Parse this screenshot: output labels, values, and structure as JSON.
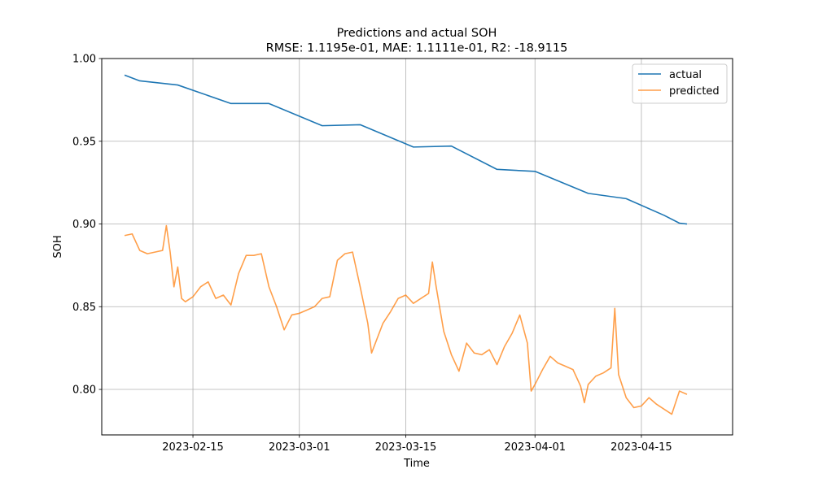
{
  "chart_data": {
    "type": "line",
    "title": "Predictions and actual SOH",
    "subtitle": "RMSE: 1.1195e-01, MAE: 1.1111e-01, R2: -18.9115",
    "xlabel": "Time",
    "ylabel": "SOH",
    "xlim": [
      "2023-02-03",
      "2023-04-27"
    ],
    "ylim": [
      0.7725,
      1.0
    ],
    "x_ticks": [
      "2023-02-15",
      "2023-03-01",
      "2023-03-15",
      "2023-04-01",
      "2023-04-15"
    ],
    "y_ticks": [
      "0.80",
      "0.85",
      "0.90",
      "0.95",
      "1.00"
    ],
    "y_tick_values": [
      0.8,
      0.85,
      0.9,
      0.95,
      1.0
    ],
    "grid": true,
    "legend_position": "upper-right",
    "series": [
      {
        "name": "actual",
        "color": "#1f77b4",
        "points": [
          [
            "2023-02-06",
            0.99
          ],
          [
            "2023-02-08",
            0.9865
          ],
          [
            "2023-02-13",
            0.984
          ],
          [
            "2023-02-20",
            0.9728
          ],
          [
            "2023-02-25",
            0.9728
          ],
          [
            "2023-03-04",
            0.9594
          ],
          [
            "2023-03-09",
            0.96
          ],
          [
            "2023-03-16",
            0.9465
          ],
          [
            "2023-03-21",
            0.9471
          ],
          [
            "2023-03-27",
            0.933
          ],
          [
            "2023-04-01",
            0.9318
          ],
          [
            "2023-04-08",
            0.9185
          ],
          [
            "2023-04-13",
            0.9153
          ],
          [
            "2023-04-18",
            0.9052
          ],
          [
            "2023-04-20",
            0.9005
          ],
          [
            "2023-04-21",
            0.9
          ]
        ]
      },
      {
        "name": "predicted",
        "color": "#ff7f0e",
        "points": [
          [
            "2023-02-06",
            0.893
          ],
          [
            "2023-02-07",
            0.894
          ],
          [
            "2023-02-08",
            0.884
          ],
          [
            "2023-02-09",
            0.882
          ],
          [
            "2023-02-10",
            0.883
          ],
          [
            "2023-02-11",
            0.884
          ],
          [
            "2023-02-11T12:00",
            0.899
          ],
          [
            "2023-02-12",
            0.883
          ],
          [
            "2023-02-12T12:00",
            0.862
          ],
          [
            "2023-02-13",
            0.874
          ],
          [
            "2023-02-13T12:00",
            0.855
          ],
          [
            "2023-02-14",
            0.853
          ],
          [
            "2023-02-15",
            0.856
          ],
          [
            "2023-02-16",
            0.862
          ],
          [
            "2023-02-17",
            0.865
          ],
          [
            "2023-02-18",
            0.855
          ],
          [
            "2023-02-19",
            0.857
          ],
          [
            "2023-02-20",
            0.851
          ],
          [
            "2023-02-21",
            0.87
          ],
          [
            "2023-02-22",
            0.881
          ],
          [
            "2023-02-23",
            0.881
          ],
          [
            "2023-02-24",
            0.882
          ],
          [
            "2023-02-25",
            0.862
          ],
          [
            "2023-02-26",
            0.85
          ],
          [
            "2023-02-27",
            0.836
          ],
          [
            "2023-02-28",
            0.845
          ],
          [
            "2023-03-01",
            0.846
          ],
          [
            "2023-03-02",
            0.848
          ],
          [
            "2023-03-03",
            0.85
          ],
          [
            "2023-03-04",
            0.855
          ],
          [
            "2023-03-05",
            0.856
          ],
          [
            "2023-03-06",
            0.878
          ],
          [
            "2023-03-07",
            0.882
          ],
          [
            "2023-03-08",
            0.883
          ],
          [
            "2023-03-09",
            0.862
          ],
          [
            "2023-03-10",
            0.84
          ],
          [
            "2023-03-10T12:00",
            0.822
          ],
          [
            "2023-03-11",
            0.828
          ],
          [
            "2023-03-12",
            0.84
          ],
          [
            "2023-03-13",
            0.847
          ],
          [
            "2023-03-14",
            0.855
          ],
          [
            "2023-03-15",
            0.857
          ],
          [
            "2023-03-16",
            0.852
          ],
          [
            "2023-03-17",
            0.855
          ],
          [
            "2023-03-18",
            0.858
          ],
          [
            "2023-03-18T12:00",
            0.877
          ],
          [
            "2023-03-19",
            0.862
          ],
          [
            "2023-03-20",
            0.835
          ],
          [
            "2023-03-21",
            0.821
          ],
          [
            "2023-03-22",
            0.811
          ],
          [
            "2023-03-23",
            0.828
          ],
          [
            "2023-03-24",
            0.822
          ],
          [
            "2023-03-25",
            0.821
          ],
          [
            "2023-03-26",
            0.824
          ],
          [
            "2023-03-27",
            0.815
          ],
          [
            "2023-03-28",
            0.826
          ],
          [
            "2023-03-29",
            0.834
          ],
          [
            "2023-03-30",
            0.845
          ],
          [
            "2023-03-31",
            0.828
          ],
          [
            "2023-03-31T12:00",
            0.799
          ],
          [
            "2023-04-01",
            0.803
          ],
          [
            "2023-04-02",
            0.812
          ],
          [
            "2023-04-03",
            0.82
          ],
          [
            "2023-04-04",
            0.816
          ],
          [
            "2023-04-05",
            0.814
          ],
          [
            "2023-04-06",
            0.812
          ],
          [
            "2023-04-07",
            0.802
          ],
          [
            "2023-04-07T12:00",
            0.792
          ],
          [
            "2023-04-08",
            0.803
          ],
          [
            "2023-04-09",
            0.808
          ],
          [
            "2023-04-10",
            0.81
          ],
          [
            "2023-04-11",
            0.813
          ],
          [
            "2023-04-11T12:00",
            0.849
          ],
          [
            "2023-04-12",
            0.809
          ],
          [
            "2023-04-13",
            0.795
          ],
          [
            "2023-04-14",
            0.789
          ],
          [
            "2023-04-15",
            0.79
          ],
          [
            "2023-04-16",
            0.795
          ],
          [
            "2023-04-17",
            0.791
          ],
          [
            "2023-04-18",
            0.788
          ],
          [
            "2023-04-19",
            0.785
          ],
          [
            "2023-04-20",
            0.799
          ],
          [
            "2023-04-21",
            0.797
          ]
        ]
      }
    ]
  }
}
